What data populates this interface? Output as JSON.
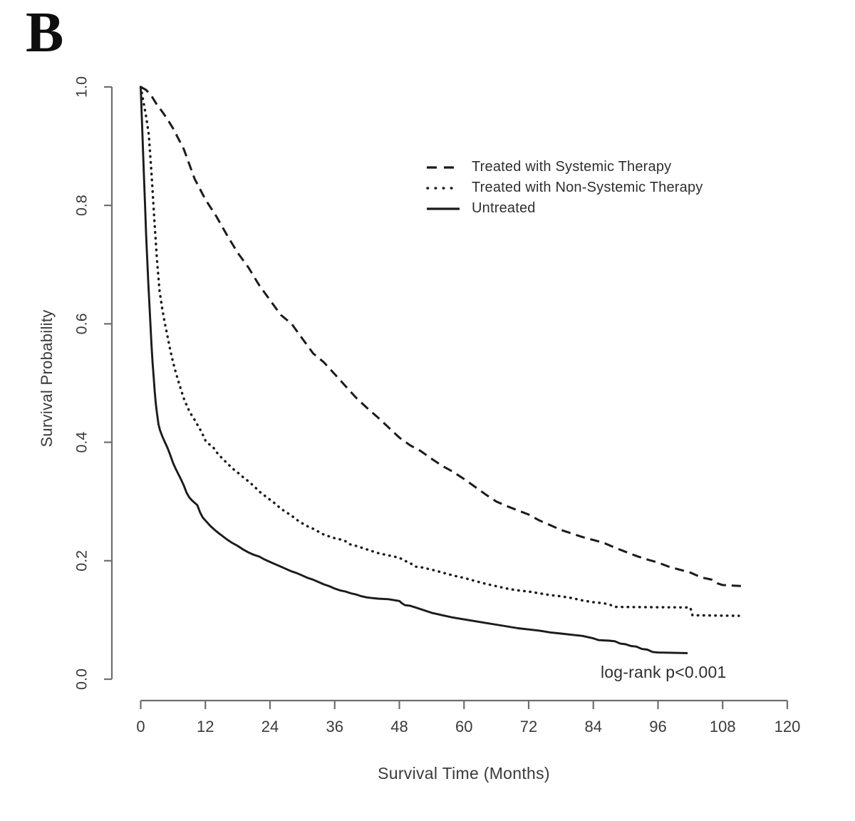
{
  "panel_label": "B",
  "annotation": {
    "text": "log-rank p<0.001"
  },
  "legend": {
    "items": [
      {
        "label": "Treated with Systemic Therapy",
        "line_style": "dashed"
      },
      {
        "label": "Treated with Non-Systemic Therapy",
        "line_style": "dotted"
      },
      {
        "label": "Untreated",
        "line_style": "solid"
      }
    ]
  },
  "colors": {
    "curve": "#1b1b1b",
    "axis": "#6e6e6e",
    "text": "#3a3a3a"
  },
  "chart_data": {
    "type": "line",
    "subtype": "kaplan-meier-survival",
    "title": "",
    "xlabel": "Survival Time (Months)",
    "ylabel": "Survival Probability",
    "xlim": [
      0,
      120
    ],
    "ylim": [
      0.0,
      1.0
    ],
    "x_ticks": [
      0,
      12,
      24,
      36,
      48,
      60,
      72,
      84,
      96,
      108,
      120
    ],
    "y_ticks": [
      "0.0",
      "0.2",
      "0.4",
      "0.6",
      "0.8",
      "1.0"
    ],
    "grid": false,
    "legend_position": "upper-right-inside",
    "annotations": [
      {
        "text": "log-rank p<0.001",
        "x_months": 86,
        "y_prob": 0.02
      }
    ],
    "series": [
      {
        "name": "Treated with Systemic Therapy",
        "line_style": "dashed",
        "points": [
          [
            0,
            1.0
          ],
          [
            1,
            0.995
          ],
          [
            2,
            0.985
          ],
          [
            3,
            0.97
          ],
          [
            4,
            0.958
          ],
          [
            5,
            0.945
          ],
          [
            6,
            0.93
          ],
          [
            8,
            0.895
          ],
          [
            10,
            0.845
          ],
          [
            12,
            0.81
          ],
          [
            14,
            0.782
          ],
          [
            16,
            0.75
          ],
          [
            18,
            0.72
          ],
          [
            20,
            0.695
          ],
          [
            22,
            0.665
          ],
          [
            24,
            0.64
          ],
          [
            26,
            0.615
          ],
          [
            28,
            0.6
          ],
          [
            30,
            0.575
          ],
          [
            32,
            0.55
          ],
          [
            34,
            0.535
          ],
          [
            36,
            0.515
          ],
          [
            38,
            0.495
          ],
          [
            40,
            0.475
          ],
          [
            42,
            0.458
          ],
          [
            44,
            0.442
          ],
          [
            46,
            0.425
          ],
          [
            48,
            0.408
          ],
          [
            50,
            0.395
          ],
          [
            52,
            0.385
          ],
          [
            54,
            0.372
          ],
          [
            56,
            0.36
          ],
          [
            58,
            0.35
          ],
          [
            60,
            0.338
          ],
          [
            62,
            0.325
          ],
          [
            64,
            0.312
          ],
          [
            66,
            0.3
          ],
          [
            68,
            0.292
          ],
          [
            70,
            0.285
          ],
          [
            72,
            0.278
          ],
          [
            74,
            0.268
          ],
          [
            76,
            0.26
          ],
          [
            78,
            0.252
          ],
          [
            80,
            0.246
          ],
          [
            82,
            0.24
          ],
          [
            84,
            0.235
          ],
          [
            86,
            0.23
          ],
          [
            88,
            0.222
          ],
          [
            90,
            0.215
          ],
          [
            92,
            0.208
          ],
          [
            94,
            0.202
          ],
          [
            96,
            0.197
          ],
          [
            98,
            0.19
          ],
          [
            100,
            0.185
          ],
          [
            102,
            0.18
          ],
          [
            104,
            0.172
          ],
          [
            106,
            0.168
          ],
          [
            107,
            0.162
          ],
          [
            108,
            0.159
          ],
          [
            112,
            0.157
          ]
        ]
      },
      {
        "name": "Treated with Non-Systemic Therapy",
        "line_style": "dotted",
        "points": [
          [
            0,
            1.0
          ],
          [
            0.5,
            0.975
          ],
          [
            1,
            0.95
          ],
          [
            1.5,
            0.92
          ],
          [
            2,
            0.855
          ],
          [
            2.5,
            0.78
          ],
          [
            3,
            0.71
          ],
          [
            3.5,
            0.655
          ],
          [
            4,
            0.625
          ],
          [
            4.5,
            0.6
          ],
          [
            5,
            0.578
          ],
          [
            5.5,
            0.555
          ],
          [
            6,
            0.535
          ],
          [
            6.5,
            0.518
          ],
          [
            7,
            0.503
          ],
          [
            7.5,
            0.488
          ],
          [
            8,
            0.474
          ],
          [
            8.5,
            0.463
          ],
          [
            9,
            0.453
          ],
          [
            9.5,
            0.445
          ],
          [
            10,
            0.438
          ],
          [
            10.5,
            0.43
          ],
          [
            11,
            0.422
          ],
          [
            11.5,
            0.413
          ],
          [
            12,
            0.403
          ],
          [
            12.5,
            0.398
          ],
          [
            13,
            0.395
          ],
          [
            13.5,
            0.391
          ],
          [
            14,
            0.384
          ],
          [
            15,
            0.374
          ],
          [
            16,
            0.365
          ],
          [
            17,
            0.356
          ],
          [
            18,
            0.349
          ],
          [
            19,
            0.341
          ],
          [
            20,
            0.334
          ],
          [
            21,
            0.326
          ],
          [
            22,
            0.317
          ],
          [
            23,
            0.31
          ],
          [
            24,
            0.303
          ],
          [
            25,
            0.296
          ],
          [
            26,
            0.288
          ],
          [
            27,
            0.282
          ],
          [
            28,
            0.276
          ],
          [
            29,
            0.269
          ],
          [
            30,
            0.263
          ],
          [
            31,
            0.258
          ],
          [
            32,
            0.254
          ],
          [
            33,
            0.249
          ],
          [
            34,
            0.244
          ],
          [
            35,
            0.241
          ],
          [
            36,
            0.238
          ],
          [
            37,
            0.236
          ],
          [
            38,
            0.233
          ],
          [
            39,
            0.227
          ],
          [
            40,
            0.225
          ],
          [
            41,
            0.222
          ],
          [
            42,
            0.219
          ],
          [
            43,
            0.216
          ],
          [
            44,
            0.213
          ],
          [
            45,
            0.211
          ],
          [
            46,
            0.209
          ],
          [
            47,
            0.207
          ],
          [
            48,
            0.205
          ],
          [
            49,
            0.2
          ],
          [
            50,
            0.196
          ],
          [
            51,
            0.19
          ],
          [
            52,
            0.189
          ],
          [
            54,
            0.185
          ],
          [
            56,
            0.18
          ],
          [
            58,
            0.175
          ],
          [
            60,
            0.171
          ],
          [
            62,
            0.166
          ],
          [
            64,
            0.161
          ],
          [
            66,
            0.157
          ],
          [
            68,
            0.153
          ],
          [
            70,
            0.15
          ],
          [
            72,
            0.148
          ],
          [
            74,
            0.145
          ],
          [
            76,
            0.142
          ],
          [
            78,
            0.14
          ],
          [
            80,
            0.137
          ],
          [
            82,
            0.133
          ],
          [
            84,
            0.13
          ],
          [
            86,
            0.128
          ],
          [
            87,
            0.126
          ],
          [
            88,
            0.122
          ],
          [
            102,
            0.121
          ],
          [
            102.4,
            0.108
          ],
          [
            111,
            0.107
          ]
        ]
      },
      {
        "name": "Untreated",
        "line_style": "solid",
        "points": [
          [
            0,
            1.0
          ],
          [
            0.2,
            0.95
          ],
          [
            0.4,
            0.9
          ],
          [
            0.6,
            0.85
          ],
          [
            0.8,
            0.8
          ],
          [
            1,
            0.75
          ],
          [
            1.2,
            0.71
          ],
          [
            1.4,
            0.67
          ],
          [
            1.6,
            0.635
          ],
          [
            1.8,
            0.6
          ],
          [
            2,
            0.565
          ],
          [
            2.2,
            0.535
          ],
          [
            2.4,
            0.51
          ],
          [
            2.6,
            0.485
          ],
          [
            2.8,
            0.465
          ],
          [
            3,
            0.45
          ],
          [
            3.3,
            0.43
          ],
          [
            3.6,
            0.42
          ],
          [
            4,
            0.41
          ],
          [
            4.5,
            0.4
          ],
          [
            5,
            0.39
          ],
          [
            5.5,
            0.378
          ],
          [
            6,
            0.365
          ],
          [
            6.5,
            0.355
          ],
          [
            7,
            0.346
          ],
          [
            7.5,
            0.337
          ],
          [
            8,
            0.327
          ],
          [
            8.5,
            0.315
          ],
          [
            9,
            0.307
          ],
          [
            9.5,
            0.302
          ],
          [
            10,
            0.298
          ],
          [
            10.5,
            0.294
          ],
          [
            11,
            0.282
          ],
          [
            11.5,
            0.273
          ],
          [
            12,
            0.268
          ],
          [
            13,
            0.258
          ],
          [
            14,
            0.25
          ],
          [
            15,
            0.243
          ],
          [
            16,
            0.236
          ],
          [
            17,
            0.23
          ],
          [
            18,
            0.225
          ],
          [
            19,
            0.219
          ],
          [
            20,
            0.214
          ],
          [
            21,
            0.21
          ],
          [
            22,
            0.207
          ],
          [
            23,
            0.202
          ],
          [
            24,
            0.198
          ],
          [
            25,
            0.194
          ],
          [
            26,
            0.19
          ],
          [
            27,
            0.186
          ],
          [
            28,
            0.182
          ],
          [
            29,
            0.179
          ],
          [
            30,
            0.175
          ],
          [
            31,
            0.171
          ],
          [
            32,
            0.168
          ],
          [
            33,
            0.164
          ],
          [
            34,
            0.16
          ],
          [
            35,
            0.157
          ],
          [
            36,
            0.153
          ],
          [
            37,
            0.15
          ],
          [
            38,
            0.148
          ],
          [
            39,
            0.145
          ],
          [
            40,
            0.143
          ],
          [
            41,
            0.14
          ],
          [
            42,
            0.138
          ],
          [
            43,
            0.137
          ],
          [
            44,
            0.136
          ],
          [
            46,
            0.135
          ],
          [
            48,
            0.132
          ],
          [
            48.5,
            0.128
          ],
          [
            49,
            0.125
          ],
          [
            50,
            0.124
          ],
          [
            51,
            0.121
          ],
          [
            52,
            0.118
          ],
          [
            53,
            0.115
          ],
          [
            54,
            0.112
          ],
          [
            55,
            0.11
          ],
          [
            56,
            0.108
          ],
          [
            58,
            0.104
          ],
          [
            60,
            0.101
          ],
          [
            62,
            0.098
          ],
          [
            64,
            0.095
          ],
          [
            66,
            0.092
          ],
          [
            68,
            0.089
          ],
          [
            70,
            0.086
          ],
          [
            72,
            0.084
          ],
          [
            74,
            0.082
          ],
          [
            76,
            0.079
          ],
          [
            78,
            0.077
          ],
          [
            80,
            0.075
          ],
          [
            82,
            0.073
          ],
          [
            84,
            0.069
          ],
          [
            85,
            0.066
          ],
          [
            87,
            0.065
          ],
          [
            88,
            0.064
          ],
          [
            89,
            0.06
          ],
          [
            90,
            0.059
          ],
          [
            91,
            0.056
          ],
          [
            92,
            0.055
          ],
          [
            93,
            0.051
          ],
          [
            94,
            0.05
          ],
          [
            95,
            0.046
          ],
          [
            96,
            0.045
          ],
          [
            101.5,
            0.044
          ]
        ]
      }
    ]
  }
}
